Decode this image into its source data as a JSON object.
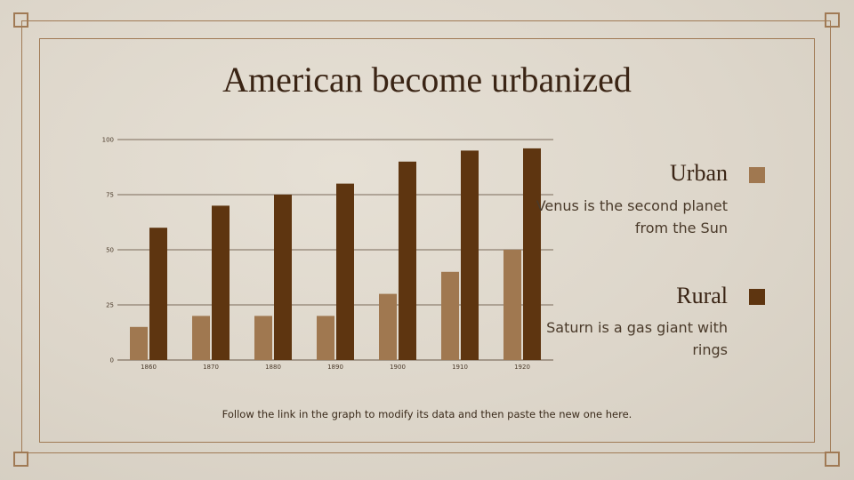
{
  "slide": {
    "title": "American become urbanized",
    "footnote": "Follow the link in the graph to modify its data and then paste the new one here."
  },
  "legend": [
    {
      "name": "Urban",
      "description": "Venus is the second planet from the Sun",
      "color": "#a07850"
    },
    {
      "name": "Rural",
      "description": "Saturn is a gas giant with rings",
      "color": "#5e3510"
    }
  ],
  "chart_data": {
    "type": "bar",
    "categories": [
      "1860",
      "1870",
      "1880",
      "1890",
      "1900",
      "1910",
      "1920"
    ],
    "series": [
      {
        "name": "Urban",
        "values": [
          15,
          20,
          20,
          20,
          30,
          40,
          50
        ],
        "color": "#a07850"
      },
      {
        "name": "Rural",
        "values": [
          60,
          70,
          75,
          80,
          90,
          95,
          96
        ],
        "color": "#5e3510"
      }
    ],
    "yticks": [
      0,
      25,
      50,
      75,
      100
    ],
    "ylim": [
      0,
      100
    ],
    "grid": true,
    "legend_position": "right"
  }
}
